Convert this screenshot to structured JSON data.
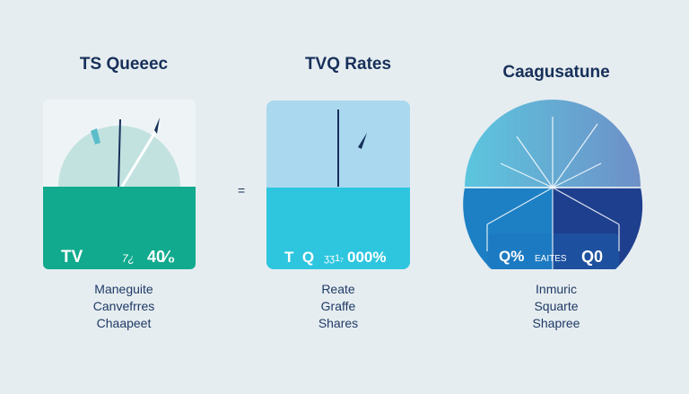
{
  "panels": [
    {
      "title": "TS Queeec",
      "left_label": "TV",
      "small_value": "7¿",
      "value": "40⁄₀",
      "lines": [
        "Maneguite",
        "Canvefrres",
        "Chaapeet"
      ],
      "colors": {
        "top": "#eef4f6",
        "arc": "#c2e2e0",
        "bottom": "#11aa8e"
      }
    },
    {
      "title": "TVQ Rates",
      "left_label": "T  Q",
      "small_value": "ʒʒ1₇",
      "value": "000%",
      "lines": [
        "Reate",
        "Graffe",
        "Shares"
      ],
      "colors": {
        "top": "#a9d8ef",
        "bottom": "#2ec6df"
      }
    },
    {
      "title": "Caagusatune",
      "left_label": "Q%",
      "small_value": "EAITES",
      "value": "Q0",
      "lines": [
        "Inmuric",
        "Squarte",
        "Shapree"
      ],
      "colors": {
        "top_left": "#5cc6de",
        "top_right": "#6e90c8",
        "bottom_left": "#1d80c4",
        "bottom_right": "#1e3f8e"
      }
    }
  ],
  "separator": "="
}
